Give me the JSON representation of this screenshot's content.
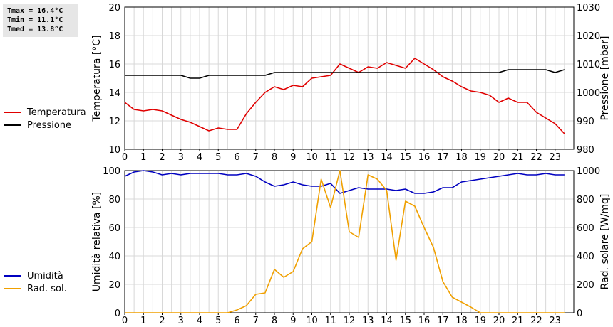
{
  "stats": {
    "tmax": "Tmax = 16.4°C",
    "tmin": "Tmin = 11.1°C",
    "tmed": "Tmed = 13.8°C"
  },
  "chart_data": [
    {
      "type": "line",
      "xlabel": "",
      "ylabel": "Temperatura [°C]",
      "y2label": "Pressione [mbar]",
      "xlim": [
        0,
        24
      ],
      "ylim": [
        10,
        20
      ],
      "y2lim": [
        980,
        1030
      ],
      "xticks": [
        "0",
        "1",
        "2",
        "3",
        "4",
        "5",
        "6",
        "7",
        "8",
        "9",
        "10",
        "11",
        "12",
        "13",
        "14",
        "15",
        "16",
        "17",
        "18",
        "19",
        "20",
        "21",
        "22",
        "23"
      ],
      "yticks": [
        "10",
        "12",
        "14",
        "16",
        "18",
        "20"
      ],
      "y2ticks": [
        "980",
        "990",
        "1000",
        "1010",
        "1020",
        "1030"
      ],
      "grid": true,
      "legend": "left",
      "series": [
        {
          "name": "Temperatura",
          "color": "#e00000",
          "axis": "left",
          "x": [
            0,
            0.5,
            1,
            1.5,
            2,
            2.5,
            3,
            3.5,
            4,
            4.5,
            5,
            5.5,
            6,
            6.5,
            7,
            7.5,
            8,
            8.5,
            9,
            9.5,
            10,
            10.5,
            11,
            11.5,
            12,
            12.5,
            13,
            13.5,
            14,
            14.5,
            15,
            15.5,
            16,
            16.5,
            17,
            17.5,
            18,
            18.5,
            19,
            19.5,
            20,
            20.5,
            21,
            21.5,
            22,
            22.5,
            23,
            23.5
          ],
          "values": [
            13.3,
            12.8,
            12.7,
            12.8,
            12.7,
            12.4,
            12.1,
            11.9,
            11.6,
            11.3,
            11.5,
            11.4,
            11.4,
            12.5,
            13.3,
            14.0,
            14.4,
            14.2,
            14.5,
            14.4,
            15.0,
            15.1,
            15.2,
            16.0,
            15.7,
            15.4,
            15.8,
            15.7,
            16.1,
            15.9,
            15.7,
            16.4,
            16.0,
            15.6,
            15.1,
            14.8,
            14.4,
            14.1,
            14.0,
            13.8,
            13.3,
            13.6,
            13.3,
            13.3,
            12.6,
            12.2,
            11.8,
            11.1
          ]
        },
        {
          "name": "Pressione",
          "color": "#000000",
          "axis": "right",
          "x": [
            0,
            0.5,
            1,
            1.5,
            2,
            2.5,
            3,
            3.5,
            4,
            4.5,
            5,
            5.5,
            6,
            6.5,
            7,
            7.5,
            8,
            8.5,
            9,
            9.5,
            10,
            10.5,
            11,
            11.5,
            12,
            12.5,
            13,
            13.5,
            14,
            14.5,
            15,
            15.5,
            16,
            16.5,
            17,
            17.5,
            18,
            18.5,
            19,
            19.5,
            20,
            20.5,
            21,
            21.5,
            22,
            22.5,
            23,
            23.5
          ],
          "values": [
            1006,
            1006,
            1006,
            1006,
            1006,
            1006,
            1006,
            1005,
            1005,
            1006,
            1006,
            1006,
            1006,
            1006,
            1006,
            1006,
            1007,
            1007,
            1007,
            1007,
            1007,
            1007,
            1007,
            1007,
            1007,
            1007,
            1007,
            1007,
            1007,
            1007,
            1007,
            1007,
            1007,
            1007,
            1007,
            1007,
            1007,
            1007,
            1007,
            1007,
            1007,
            1008,
            1008,
            1008,
            1008,
            1008,
            1007,
            1008
          ]
        }
      ]
    },
    {
      "type": "line",
      "xlabel": "",
      "ylabel": "Umidità relativa [%]",
      "y2label": "Rad. solare [W/mq]",
      "xlim": [
        0,
        24
      ],
      "ylim": [
        0,
        100
      ],
      "y2lim": [
        0,
        1000
      ],
      "xticks": [
        "0",
        "1",
        "2",
        "3",
        "4",
        "5",
        "6",
        "7",
        "8",
        "9",
        "10",
        "11",
        "12",
        "13",
        "14",
        "15",
        "16",
        "17",
        "18",
        "19",
        "20",
        "21",
        "22",
        "23"
      ],
      "yticks": [
        "0",
        "20",
        "40",
        "60",
        "80",
        "100"
      ],
      "y2ticks": [
        "0",
        "200",
        "400",
        "600",
        "800",
        "1000"
      ],
      "grid": true,
      "legend": "left",
      "series": [
        {
          "name": "Umidità",
          "color": "#0000c0",
          "axis": "left",
          "x": [
            0,
            0.5,
            1,
            1.5,
            2,
            2.5,
            3,
            3.5,
            4,
            4.5,
            5,
            5.5,
            6,
            6.5,
            7,
            7.5,
            8,
            8.5,
            9,
            9.5,
            10,
            10.5,
            11,
            11.5,
            12,
            12.5,
            13,
            13.5,
            14,
            14.5,
            15,
            15.5,
            16,
            16.5,
            17,
            17.5,
            18,
            18.5,
            19,
            19.5,
            20,
            20.5,
            21,
            21.5,
            22,
            22.5,
            23,
            23.5
          ],
          "values": [
            96,
            99,
            100,
            99,
            97,
            98,
            97,
            98,
            98,
            98,
            98,
            97,
            97,
            98,
            96,
            92,
            89,
            90,
            92,
            90,
            89,
            89,
            91,
            84,
            86,
            88,
            87,
            87,
            87,
            86,
            87,
            84,
            84,
            85,
            88,
            88,
            92,
            93,
            94,
            95,
            96,
            97,
            98,
            97,
            97,
            98,
            97,
            97
          ]
        },
        {
          "name": "Rad. sol.",
          "color": "#f0a000",
          "axis": "right",
          "x": [
            0,
            0.5,
            1,
            1.5,
            2,
            2.5,
            3,
            3.5,
            4,
            4.5,
            5,
            5.5,
            6,
            6.5,
            7,
            7.5,
            8,
            8.5,
            9,
            9.5,
            10,
            10.5,
            11,
            11.5,
            12,
            12.5,
            13,
            13.5,
            14,
            14.5,
            15,
            15.5,
            16,
            16.5,
            17,
            17.5,
            18,
            18.5,
            19,
            19.5,
            20,
            20.5,
            21,
            21.5,
            22,
            22.5,
            23,
            23.5
          ],
          "values": [
            0,
            0,
            0,
            0,
            0,
            0,
            0,
            0,
            0,
            0,
            0,
            0,
            20,
            50,
            130,
            140,
            305,
            250,
            290,
            450,
            500,
            940,
            740,
            1020,
            570,
            530,
            970,
            940,
            860,
            370,
            785,
            750,
            600,
            460,
            220,
            110,
            75,
            40,
            0,
            0,
            0,
            0,
            0,
            0,
            0,
            0,
            0,
            0
          ]
        }
      ]
    }
  ]
}
